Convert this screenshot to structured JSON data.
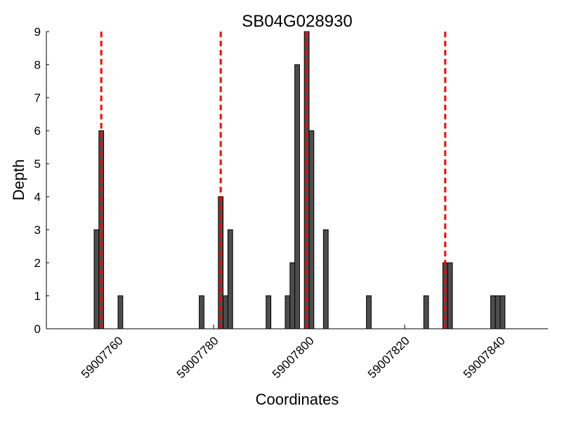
{
  "chart_data": {
    "type": "bar",
    "title": "SB04G028930",
    "xlabel": "Coordinates",
    "ylabel": "Depth",
    "xlim": [
      59007745,
      59007850
    ],
    "ylim": [
      0,
      9
    ],
    "xticks": [
      59007760,
      59007780,
      59007800,
      59007820,
      59007840
    ],
    "yticks": [
      0,
      1,
      2,
      3,
      4,
      5,
      6,
      7,
      8,
      9
    ],
    "grid": false,
    "bar_color": "#4d4d4d",
    "bars": [
      {
        "x": 59007755,
        "y": 3
      },
      {
        "x": 59007756,
        "y": 6
      },
      {
        "x": 59007760,
        "y": 1
      },
      {
        "x": 59007777,
        "y": 1
      },
      {
        "x": 59007781,
        "y": 4
      },
      {
        "x": 59007782,
        "y": 1
      },
      {
        "x": 59007783,
        "y": 3
      },
      {
        "x": 59007791,
        "y": 1
      },
      {
        "x": 59007795,
        "y": 1
      },
      {
        "x": 59007796,
        "y": 2
      },
      {
        "x": 59007797,
        "y": 8
      },
      {
        "x": 59007799,
        "y": 9
      },
      {
        "x": 59007800,
        "y": 6
      },
      {
        "x": 59007803,
        "y": 3
      },
      {
        "x": 59007812,
        "y": 1
      },
      {
        "x": 59007824,
        "y": 1
      },
      {
        "x": 59007828,
        "y": 2
      },
      {
        "x": 59007829,
        "y": 2
      },
      {
        "x": 59007838,
        "y": 1
      },
      {
        "x": 59007839,
        "y": 1
      },
      {
        "x": 59007840,
        "y": 1
      }
    ],
    "vlines": {
      "color": "#ff0000",
      "style": "dashed",
      "x": [
        59007756.5,
        59007781.5,
        59007799.5,
        59007828.5
      ]
    }
  }
}
